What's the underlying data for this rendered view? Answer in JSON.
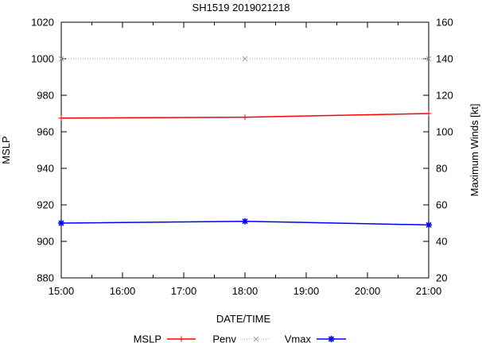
{
  "chart_data": {
    "type": "line",
    "title": "SH1519 2019021218",
    "xlabel": "DATE/TIME",
    "ylabel": "MSLP",
    "y2label": "Maximum Winds [kt]",
    "categories": [
      "15:00",
      "16:00",
      "17:00",
      "18:00",
      "19:00",
      "20:00",
      "21:00"
    ],
    "x": [
      0,
      3,
      6
    ],
    "ylim": [
      880,
      1020
    ],
    "y_ticks": [
      "880",
      "900",
      "920",
      "940",
      "960",
      "980",
      "1000",
      "1020"
    ],
    "y2lim": [
      20,
      160
    ],
    "y2_ticks": [
      "20",
      "40",
      "60",
      "80",
      "100",
      "120",
      "140",
      "160"
    ],
    "grid": false,
    "legend_position": "bottom",
    "series": [
      {
        "name": "MSLP",
        "axis": "y",
        "color": "#ff0000",
        "marker": "plus",
        "line": "solid",
        "values": [
          967.5,
          968,
          970
        ]
      },
      {
        "name": "Penv",
        "axis": "y",
        "color": "#a0a0a0",
        "marker": "cross",
        "line": "dotted",
        "values": [
          1000,
          1000,
          1000
        ]
      },
      {
        "name": "Vmax",
        "axis": "y2",
        "color": "#0000ff",
        "marker": "star",
        "line": "solid",
        "values": [
          50,
          51,
          49
        ]
      }
    ]
  }
}
